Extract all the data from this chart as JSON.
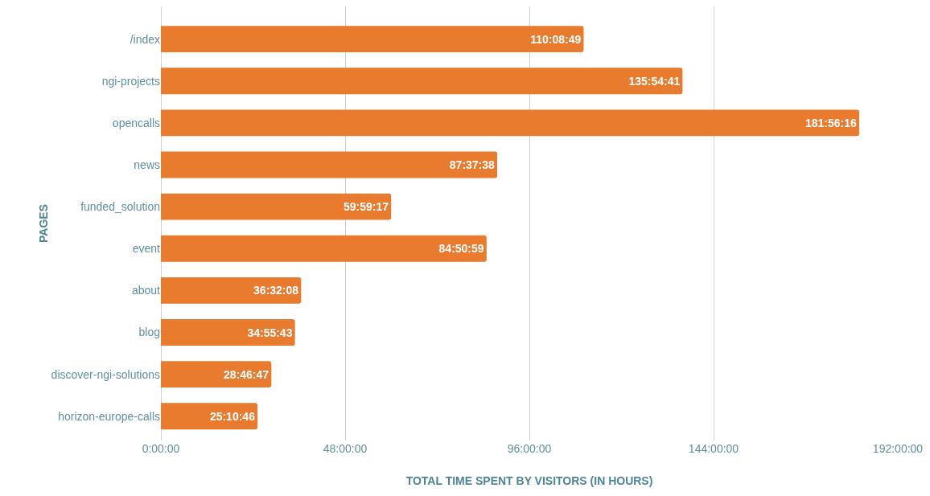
{
  "chart_data": {
    "type": "bar",
    "orientation": "horizontal",
    "categories": [
      "/index",
      "ngi-projects",
      "opencalls",
      "news",
      "funded_solution",
      "event",
      "about",
      "blog",
      "discover-ngi-solutions",
      "horizon-europe-calls"
    ],
    "values": [
      110.1469,
      135.9114,
      181.9378,
      87.6272,
      59.9881,
      84.8497,
      36.5356,
      34.9286,
      28.7797,
      25.1794
    ],
    "value_labels": [
      "110:08:49",
      "135:54:41",
      "181:56:16",
      "87:37:38",
      "59:59:17",
      "84:50:59",
      "36:32:08",
      "34:55:43",
      "28:46:47",
      "25:10:46"
    ],
    "color": "#e87b2e",
    "xlim": [
      0,
      192
    ],
    "xticks": [
      {
        "value": 0,
        "label": "0:00:00"
      },
      {
        "value": 48,
        "label": "48:00:00"
      },
      {
        "value": 96,
        "label": "96:00:00"
      },
      {
        "value": 144,
        "label": "144:00:00"
      },
      {
        "value": 192,
        "label": "192:00:00"
      }
    ],
    "xlabel": "TOTAL TIME SPENT BY VISITORS (IN HOURS)",
    "ylabel": "PAGES",
    "grid": "x"
  }
}
